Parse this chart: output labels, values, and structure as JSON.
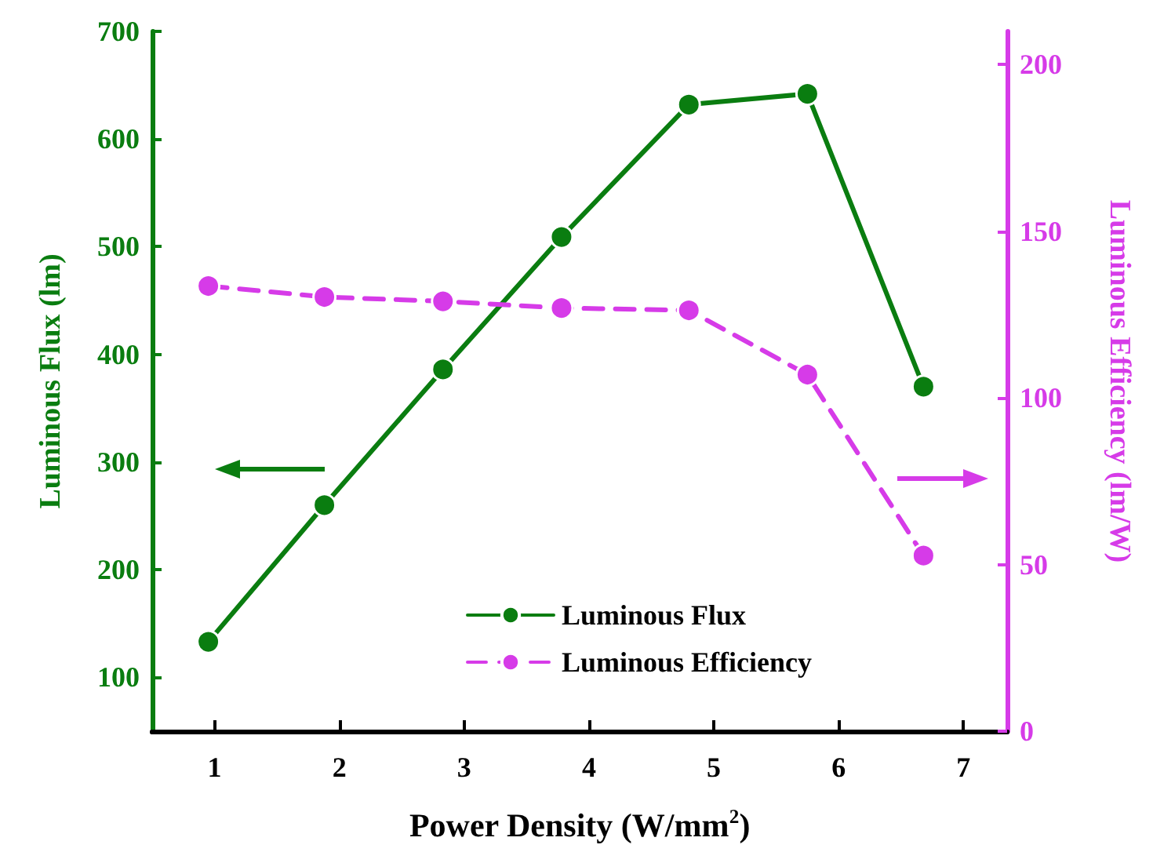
{
  "chart_data": {
    "type": "line",
    "xlabel": "Power Density (W/mm$^{2}$)",
    "ylabel": "Luminous Flux (lm)",
    "y2label": "Luminous Efficiency (lm/W)",
    "x": [
      0.95,
      1.88,
      2.83,
      3.78,
      4.8,
      5.75,
      6.68
    ],
    "xlim": [
      0.5,
      7.35
    ],
    "xticks": [
      1,
      2,
      3,
      4,
      5,
      6,
      7
    ],
    "ylim": [
      50,
      700
    ],
    "yticks": [
      100,
      200,
      300,
      400,
      500,
      600,
      700
    ],
    "y2lim": [
      0,
      210
    ],
    "y2ticks": [
      0,
      50,
      100,
      150,
      200
    ],
    "series": [
      {
        "name": "Luminous Flux",
        "color": "#0a7d10",
        "values": [
          133,
          260,
          386,
          509,
          632,
          642,
          370
        ],
        "line_style": "solid"
      },
      {
        "name": "Luminous Efficiency",
        "color": "#d63be8",
        "values": [
          133.6,
          130.3,
          129,
          127,
          126.3,
          107,
          52.7
        ],
        "axis": "y2",
        "line_style": "dashed"
      }
    ],
    "marker": "circle",
    "grid": false,
    "legend": "bottom"
  }
}
